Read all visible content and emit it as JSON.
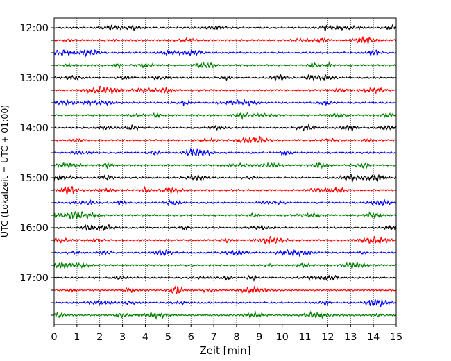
{
  "chart_data": {
    "type": "line",
    "title": "",
    "xlabel": "Zeit  [min]",
    "ylabel": "UTC (Lokalzeit = UTC + 01:00)",
    "xlim": [
      0,
      15
    ],
    "x_ticks": [
      0,
      1,
      2,
      3,
      4,
      5,
      6,
      7,
      8,
      9,
      10,
      11,
      12,
      13,
      14,
      15
    ],
    "x_tick_labels": [
      "0",
      "1",
      "2",
      "3",
      "4",
      "5",
      "6",
      "7",
      "8",
      "9",
      "10",
      "11",
      "12",
      "13",
      "14",
      "15"
    ],
    "y_tick_labels": [
      "12:00",
      "13:00",
      "14:00",
      "15:00",
      "16:00",
      "17:00"
    ],
    "grid": "vertical dotted",
    "trace_colors": [
      "#000000",
      "#ff0000",
      "#0000ff",
      "#008000"
    ],
    "traces": [
      {
        "start": "12:00",
        "color": "#000000"
      },
      {
        "start": "12:15",
        "color": "#ff0000"
      },
      {
        "start": "12:30",
        "color": "#0000ff"
      },
      {
        "start": "12:45",
        "color": "#008000"
      },
      {
        "start": "13:00",
        "color": "#000000"
      },
      {
        "start": "13:15",
        "color": "#ff0000"
      },
      {
        "start": "13:30",
        "color": "#0000ff"
      },
      {
        "start": "13:45",
        "color": "#008000"
      },
      {
        "start": "14:00",
        "color": "#000000"
      },
      {
        "start": "14:15",
        "color": "#ff0000"
      },
      {
        "start": "14:30",
        "color": "#0000ff"
      },
      {
        "start": "14:45",
        "color": "#008000"
      },
      {
        "start": "15:00",
        "color": "#000000"
      },
      {
        "start": "15:15",
        "color": "#ff0000"
      },
      {
        "start": "15:30",
        "color": "#0000ff"
      },
      {
        "start": "15:45",
        "color": "#008000"
      },
      {
        "start": "16:00",
        "color": "#000000"
      },
      {
        "start": "16:15",
        "color": "#ff0000"
      },
      {
        "start": "16:30",
        "color": "#0000ff"
      },
      {
        "start": "16:45",
        "color": "#008000"
      },
      {
        "start": "17:00",
        "color": "#000000"
      },
      {
        "start": "17:15",
        "color": "#ff0000"
      },
      {
        "start": "17:30",
        "color": "#0000ff"
      },
      {
        "start": "17:45",
        "color": "#008000"
      }
    ]
  }
}
